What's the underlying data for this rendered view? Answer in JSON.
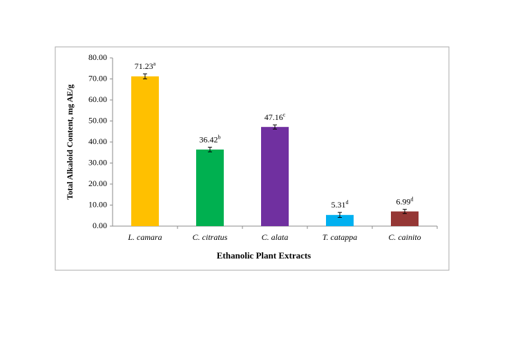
{
  "chart_data": {
    "type": "bar",
    "x_label": "Ethanolic Plant Extracts",
    "y_label": "Total Alkaloid Content, mg AE/g",
    "categories": [
      "L. camara",
      "C. citratus",
      "C. alata",
      "T. catappa",
      "C. cainito"
    ],
    "values": [
      71.23,
      36.42,
      47.16,
      5.31,
      6.99
    ],
    "errors": [
      1.2,
      1.1,
      1.0,
      1.2,
      1.0
    ],
    "significance_letters": [
      "a",
      "b",
      "c",
      "d",
      "d"
    ],
    "colors": [
      "#FFC000",
      "#00B050",
      "#7030A0",
      "#00B0F0",
      "#953735"
    ],
    "ylim": [
      0,
      80
    ],
    "yticks": [
      {
        "value": 0,
        "label": "0.00"
      },
      {
        "value": 10,
        "label": "10.00"
      },
      {
        "value": 20,
        "label": "20.00"
      },
      {
        "value": 30,
        "label": "30.00"
      },
      {
        "value": 40,
        "label": "40.00"
      },
      {
        "value": 50,
        "label": "50.00"
      },
      {
        "value": 60,
        "label": "60.00"
      },
      {
        "value": 70,
        "label": "70.00"
      },
      {
        "value": 80,
        "label": "80.00"
      }
    ]
  }
}
